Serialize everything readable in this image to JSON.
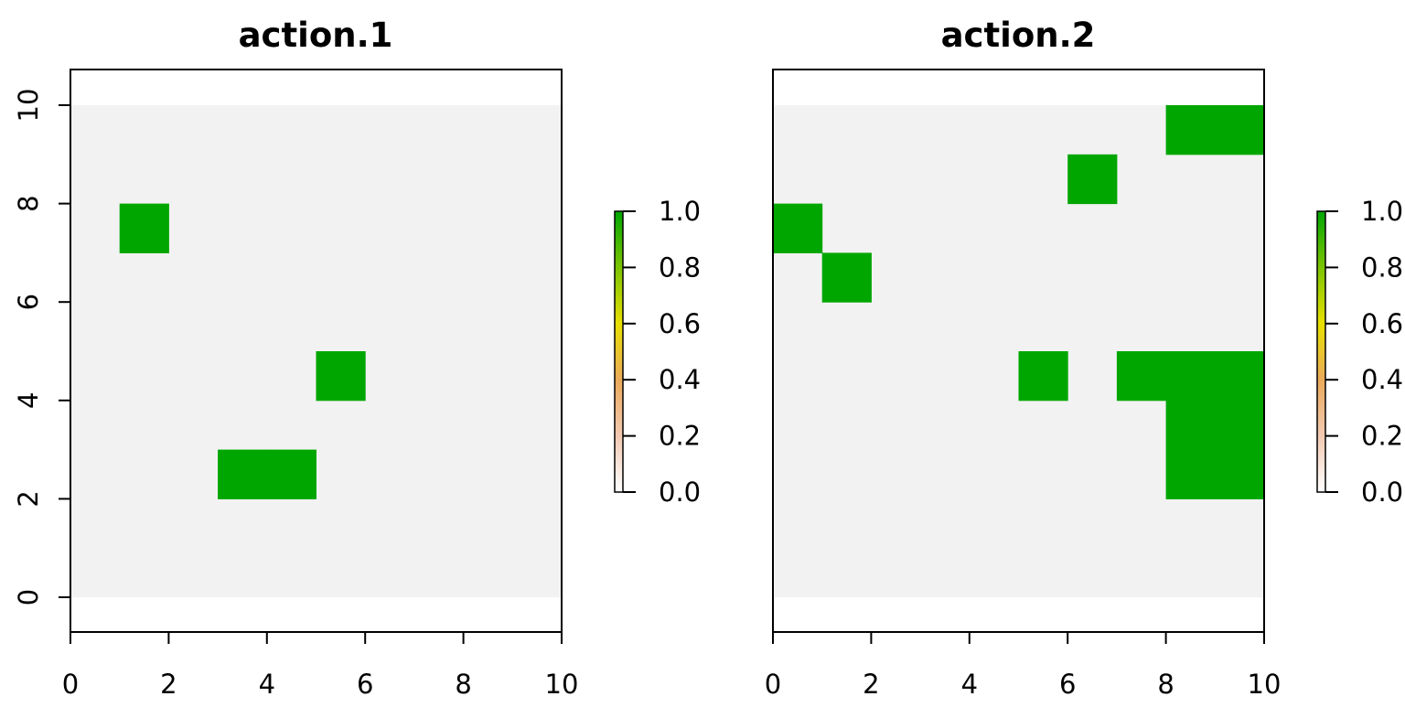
{
  "chart_data": [
    {
      "type": "heatmap",
      "title": "action.1",
      "xlim": [
        0,
        10
      ],
      "ylim": [
        0,
        10
      ],
      "x_ticks": [
        "0",
        "2",
        "4",
        "6",
        "8",
        "10"
      ],
      "y_ticks": [
        "0",
        "2",
        "4",
        "6",
        "8",
        "10"
      ],
      "background_value": 0,
      "cells_value_1": [
        {
          "x": 1,
          "y": 7
        },
        {
          "x": 5,
          "y": 4
        },
        {
          "x": 3,
          "y": 2
        },
        {
          "x": 4,
          "y": 2
        }
      ],
      "legend": {
        "placement": "right",
        "ticks": [
          "0.0",
          "0.2",
          "0.4",
          "0.6",
          "0.8",
          "1.0"
        ]
      }
    },
    {
      "type": "heatmap",
      "title": "action.2",
      "xlim": [
        0,
        10
      ],
      "ylim": [
        0,
        10
      ],
      "x_ticks": [
        "0",
        "2",
        "4",
        "6",
        "8",
        "10"
      ],
      "y_ticks": [],
      "background_value": 0,
      "cells_value_1": [
        {
          "x": 8,
          "y": 9
        },
        {
          "x": 9,
          "y": 9
        },
        {
          "x": 6,
          "y": 8
        },
        {
          "x": 0,
          "y": 7
        },
        {
          "x": 1,
          "y": 6
        },
        {
          "x": 5,
          "y": 4
        },
        {
          "x": 7,
          "y": 4
        },
        {
          "x": 8,
          "y": 4
        },
        {
          "x": 9,
          "y": 4
        },
        {
          "x": 8,
          "y": 3
        },
        {
          "x": 9,
          "y": 3
        },
        {
          "x": 8,
          "y": 2
        },
        {
          "x": 9,
          "y": 2
        }
      ],
      "legend": {
        "placement": "right",
        "ticks": [
          "0.0",
          "0.2",
          "0.4",
          "0.6",
          "0.8",
          "1.0"
        ]
      }
    }
  ],
  "colors": {
    "background_cell": "#f2f2f2",
    "value_1": "#00a600",
    "axis": "#000000",
    "colorbar_stops": [
      "#ffffff",
      "#f2c9b2",
      "#ebaa5a",
      "#e8e000",
      "#7cc400",
      "#00a600"
    ]
  }
}
